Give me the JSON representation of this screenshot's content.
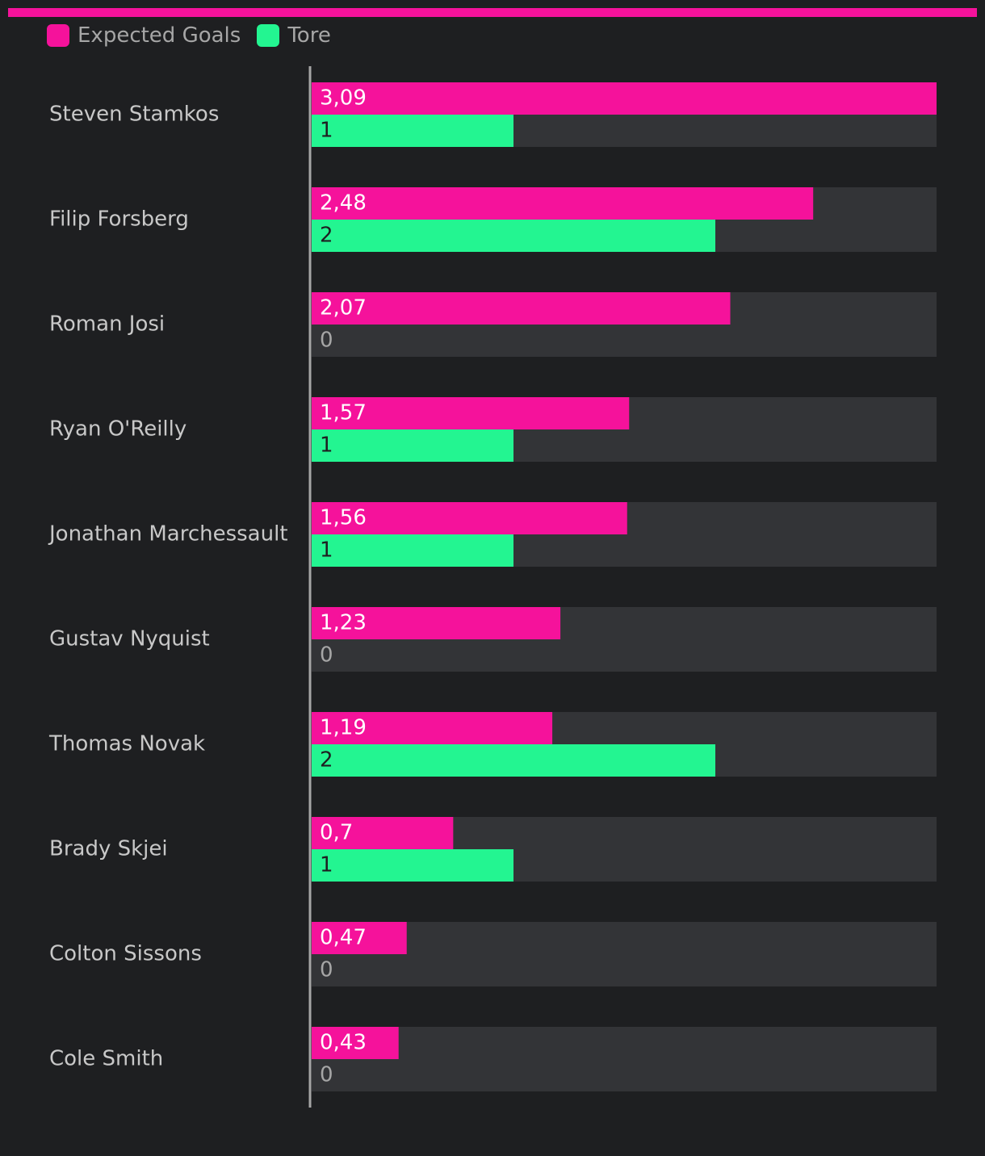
{
  "colors": {
    "accent": "#f5129b",
    "goals": "#23f591",
    "track": "#333437",
    "axis": "#a6a6a6",
    "label": "#c8c8c8",
    "background": "#1e1f21"
  },
  "legend": {
    "items": [
      {
        "label": "Expected Goals",
        "color": "#f5129b"
      },
      {
        "label": "Tore",
        "color": "#23f591"
      }
    ]
  },
  "chart_data": {
    "type": "bar",
    "orientation": "horizontal",
    "categories": [
      "Steven Stamkos",
      "Filip Forsberg",
      "Roman Josi",
      "Ryan O'Reilly",
      "Jonathan Marchessault",
      "Gustav Nyquist",
      "Thomas Novak",
      "Brady Skjei",
      "Colton Sissons",
      "Cole Smith"
    ],
    "series": [
      {
        "name": "Expected Goals",
        "values": [
          3.09,
          2.48,
          2.07,
          1.57,
          1.56,
          1.23,
          1.19,
          0.7,
          0.47,
          0.43
        ],
        "labels": [
          "3,09",
          "2,48",
          "2,07",
          "1,57",
          "1,56",
          "1,23",
          "1,19",
          "0,7",
          "0,47",
          "0,43"
        ],
        "xmax": 3.09
      },
      {
        "name": "Tore",
        "values": [
          1,
          2,
          0,
          1,
          1,
          0,
          2,
          1,
          0,
          0
        ],
        "labels": [
          "1",
          "2",
          "0",
          "1",
          "1",
          "0",
          "2",
          "1",
          "0",
          "0"
        ],
        "xmax": 3.09
      }
    ],
    "legend_position": "top-left",
    "grid": false
  }
}
